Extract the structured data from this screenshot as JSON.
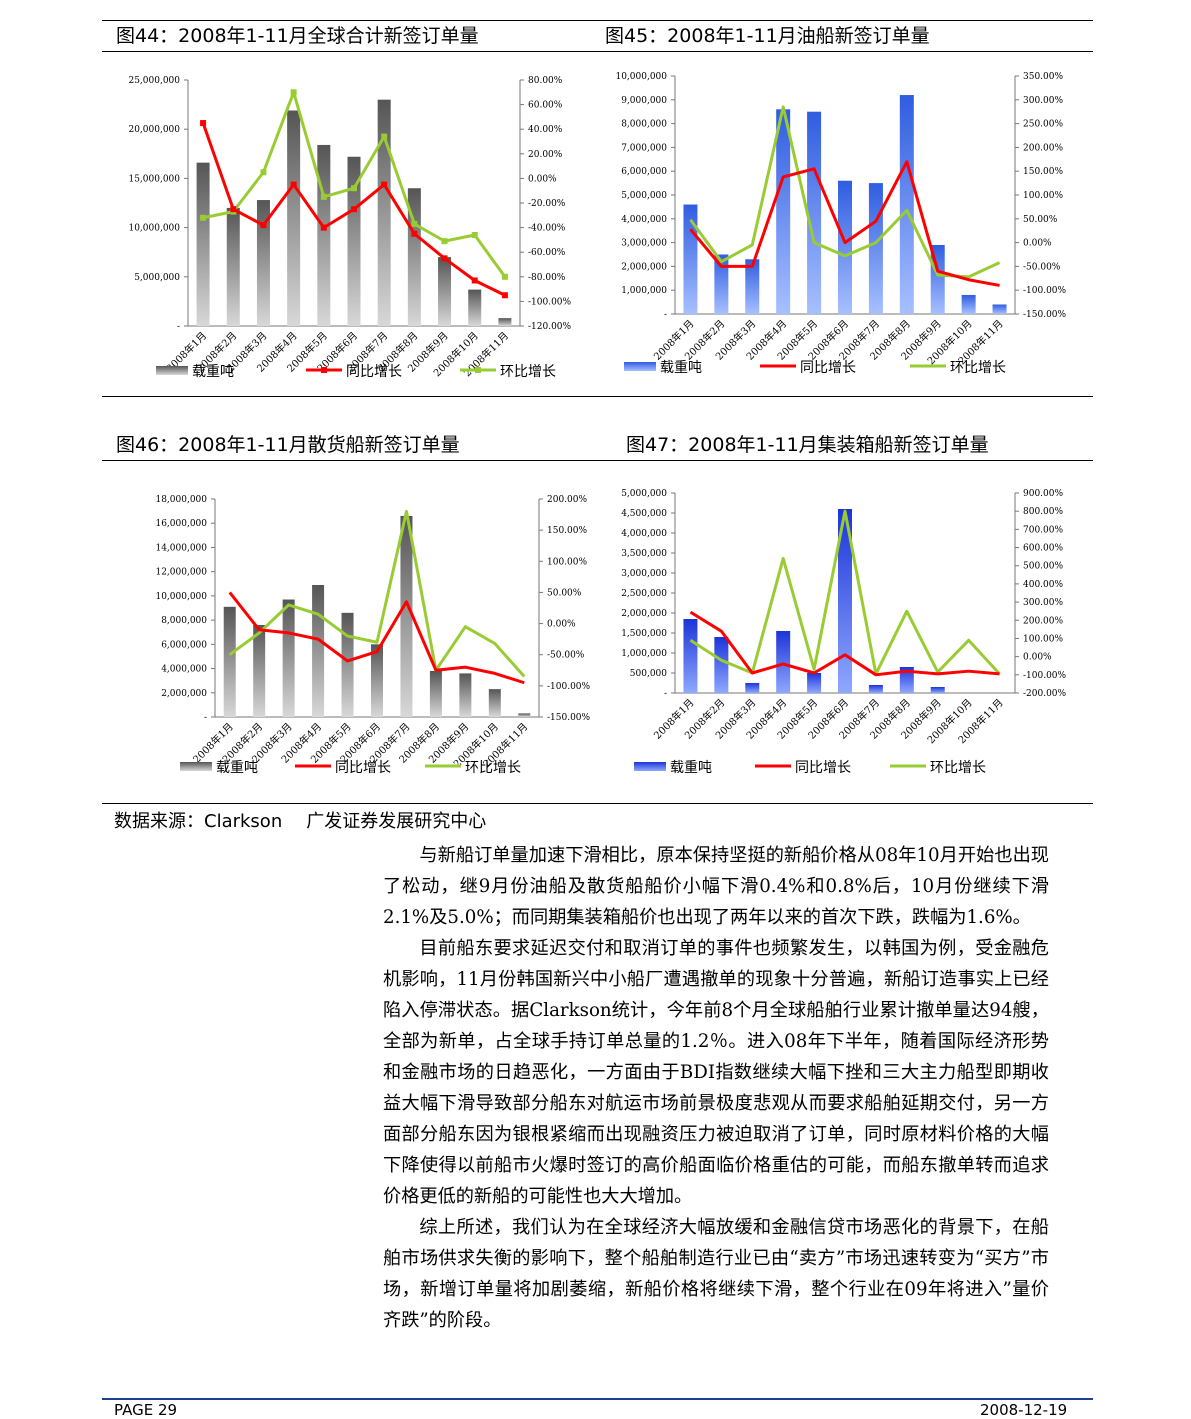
{
  "figures": [
    {
      "title": "图44：2008年1-11月全球合计新签订单量",
      "chart_data": {
        "type": "bar+line",
        "categories": [
          "2008年1月",
          "2008年2月",
          "2008年3月",
          "2008年4月",
          "2008年5月",
          "2008年6月",
          "2008年7月",
          "2008年8月",
          "2008年9月",
          "2008年10月",
          "2008年11月"
        ],
        "left_ticks": [
          "25,000,000",
          "20,000,000",
          "15,000,000",
          "10,000,000",
          "5,000,000",
          "-"
        ],
        "right_ticks": [
          "80.00%",
          "60.00%",
          "40.00%",
          "20.00%",
          "0.00%",
          "-20.00%",
          "-40.00%",
          "-60.00%",
          "-80.00%",
          "-100.00%",
          "-120.00%"
        ],
        "ylim_left": [
          0,
          25000000
        ],
        "ylim_right": [
          -120,
          80
        ],
        "series": [
          {
            "name": "载重吨",
            "axis": "left",
            "kind": "bar",
            "values": [
              16600000,
              12000000,
              12800000,
              21900000,
              18400000,
              17200000,
              23000000,
              14000000,
              7000000,
              3700000,
              800000
            ]
          },
          {
            "name": "同比增长",
            "axis": "right",
            "kind": "line",
            "values": [
              45,
              -25,
              -38,
              -5,
              -40,
              -25,
              -5,
              -45,
              -65,
              -83,
              -95
            ]
          },
          {
            "name": "环比增长",
            "axis": "right",
            "kind": "line",
            "values": [
              -32,
              -27,
              5,
              70,
              -15,
              -8,
              34,
              -37,
              -51,
              -46,
              -80
            ]
          }
        ],
        "colors": {
          "bar": "#8a8a8a",
          "yoy": "#ff0000",
          "mom": "#99cc33"
        }
      }
    },
    {
      "title": "图45：2008年1-11月油船新签订单量",
      "chart_data": {
        "type": "bar+line",
        "categories": [
          "2008年1月",
          "2008年2月",
          "2008年3月",
          "2008年4月",
          "2008年5月",
          "2008年6月",
          "2008年7月",
          "2008年8月",
          "2008年9月",
          "2008年10月",
          "2008年11月"
        ],
        "left_ticks": [
          "10,000,000",
          "9,000,000",
          "8,000,000",
          "7,000,000",
          "6,000,000",
          "5,000,000",
          "4,000,000",
          "3,000,000",
          "2,000,000",
          "1,000,000",
          "-"
        ],
        "right_ticks": [
          "350.00%",
          "300.00%",
          "250.00%",
          "200.00%",
          "150.00%",
          "100.00%",
          "50.00%",
          "0.00%",
          "-50.00%",
          "-100.00%",
          "-150.00%"
        ],
        "ylim_left": [
          0,
          10000000
        ],
        "ylim_right": [
          -150,
          350
        ],
        "series": [
          {
            "name": "载重吨",
            "axis": "left",
            "kind": "bar",
            "values": [
              4600000,
              2500000,
              2300000,
              8600000,
              8500000,
              5600000,
              5500000,
              9200000,
              2900000,
              800000,
              400000
            ]
          },
          {
            "name": "同比增长",
            "axis": "right",
            "kind": "line",
            "values": [
              28,
              -50,
              -50,
              138,
              155,
              0,
              45,
              170,
              -60,
              -78,
              -90
            ]
          },
          {
            "name": "环比增长",
            "axis": "right",
            "kind": "line",
            "values": [
              48,
              -40,
              -5,
              285,
              0,
              -28,
              0,
              68,
              -68,
              -72,
              -42
            ]
          }
        ],
        "colors": {
          "bar": "#3d6ee8",
          "yoy": "#ff0000",
          "mom": "#99cc33"
        }
      }
    },
    {
      "title": "图46：2008年1-11月散货船新签订单量",
      "chart_data": {
        "type": "bar+line",
        "categories": [
          "2008年1月",
          "2008年2月",
          "2008年3月",
          "2008年4月",
          "2008年5月",
          "2008年6月",
          "2008年7月",
          "2008年8月",
          "2008年9月",
          "2008年10月",
          "2008年11月"
        ],
        "left_ticks": [
          "18,000,000",
          "16,000,000",
          "14,000,000",
          "12,000,000",
          "10,000,000",
          "8,000,000",
          "6,000,000",
          "4,000,000",
          "2,000,000",
          "-"
        ],
        "right_ticks": [
          "200.00%",
          "150.00%",
          "100.00%",
          "50.00%",
          "0.00%",
          "-50.00%",
          "-100.00%",
          "-150.00%"
        ],
        "ylim_left": [
          0,
          18000000
        ],
        "ylim_right": [
          -150,
          200
        ],
        "series": [
          {
            "name": "载重吨",
            "axis": "left",
            "kind": "bar",
            "values": [
              9100000,
              7600000,
              9700000,
              10900000,
              8600000,
              6000000,
              16600000,
              3800000,
              3600000,
              2300000,
              300000
            ]
          },
          {
            "name": "同比增长",
            "axis": "right",
            "kind": "line",
            "values": [
              50,
              -10,
              -15,
              -25,
              -60,
              -45,
              35,
              -75,
              -70,
              -80,
              -95
            ]
          },
          {
            "name": "环比增长",
            "axis": "right",
            "kind": "line",
            "values": [
              -50,
              -15,
              30,
              15,
              -20,
              -30,
              180,
              -75,
              -5,
              -32,
              -85
            ]
          }
        ],
        "colors": {
          "bar": "#8a8a8a",
          "yoy": "#ff0000",
          "mom": "#99cc33"
        }
      }
    },
    {
      "title": "图47：2008年1-11月集装箱船新签订单量",
      "chart_data": {
        "type": "bar+line",
        "categories": [
          "2008年1月",
          "2008年2月",
          "2008年3月",
          "2008年4月",
          "2008年5月",
          "2008年6月",
          "2008年7月",
          "2008年8月",
          "2008年9月",
          "2008年10月",
          "2008年11月"
        ],
        "left_ticks": [
          "5,000,000",
          "4,500,000",
          "4,000,000",
          "3,500,000",
          "3,000,000",
          "2,500,000",
          "2,000,000",
          "1,500,000",
          "1,000,000",
          "500,000",
          "-"
        ],
        "right_ticks": [
          "900.00%",
          "800.00%",
          "700.00%",
          "600.00%",
          "500.00%",
          "400.00%",
          "300.00%",
          "200.00%",
          "100.00%",
          "0.00%",
          "-100.00%",
          "-200.00%"
        ],
        "ylim_left": [
          0,
          5000000
        ],
        "ylim_right": [
          -200,
          900
        ],
        "series": [
          {
            "name": "载重吨",
            "axis": "left",
            "kind": "bar",
            "values": [
              1850000,
              1400000,
              250000,
              1550000,
              500000,
              4600000,
              200000,
              650000,
              150000,
              0,
              0
            ]
          },
          {
            "name": "同比增长",
            "axis": "right",
            "kind": "line",
            "values": [
              245,
              140,
              -90,
              -40,
              -90,
              10,
              -100,
              -80,
              -95,
              -80,
              -95
            ]
          },
          {
            "name": "环比增长",
            "axis": "right",
            "kind": "line",
            "values": [
              90,
              -20,
              -90,
              540,
              -70,
              800,
              -95,
              250,
              -85,
              90,
              -95
            ]
          }
        ],
        "colors": {
          "bar": "#2b4fe0",
          "yoy": "#ff0000",
          "mom": "#99cc33"
        }
      }
    }
  ],
  "legend": {
    "bar": "载重吨",
    "yoy": "同比增长",
    "mom": "环比增长"
  },
  "source": {
    "label": "数据来源：Clarkson",
    "org": "广发证券发展研究中心"
  },
  "body": {
    "p1": "与新船订单量加速下滑相比，原本保持坚挺的新船价格从08年10月开始也出现了松动，继9月份油船及散货船船价小幅下滑0.4%和0.8%后，10月份继续下滑2.1%及5.0%；而同期集装箱船价也出现了两年以来的首次下跌，跌幅为1.6%。",
    "p2": "目前船东要求延迟交付和取消订单的事件也频繁发生，以韩国为例，受金融危机影响，11月份韩国新兴中小船厂遭遇撤单的现象十分普遍，新船订造事实上已经陷入停滞状态。据Clarkson统计，今年前8个月全球船舶行业累计撤单量达94艘，全部为新单，占全球手持订单总量的1.2％。进入08年下半年，随着国际经济形势和金融市场的日趋恶化，一方面由于BDI指数继续大幅下挫和三大主力船型即期收益大幅下滑导致部分船东对航运市场前景极度悲观从而要求船舶延期交付，另一方面部分船东因为银根紧缩而出现融资压力被迫取消了订单，同时原材料价格的大幅下降使得以前船市火爆时签订的高价船面临价格重估的可能，而船东撤单转而追求价格更低的新船的可能性也大大增加。",
    "p3": "综上所述，我们认为在全球经济大幅放缓和金融信贷市场恶化的背景下，在船舶市场供求失衡的影响下，整个船舶制造行业已由“卖方”市场迅速转变为“买方”市场，新增订单量将加剧萎缩，新船价格将继续下滑，整个行业在09年将进入”量价齐跌”的阶段。"
  },
  "footer": {
    "page": "PAGE 29",
    "date": "2008-12-19"
  }
}
